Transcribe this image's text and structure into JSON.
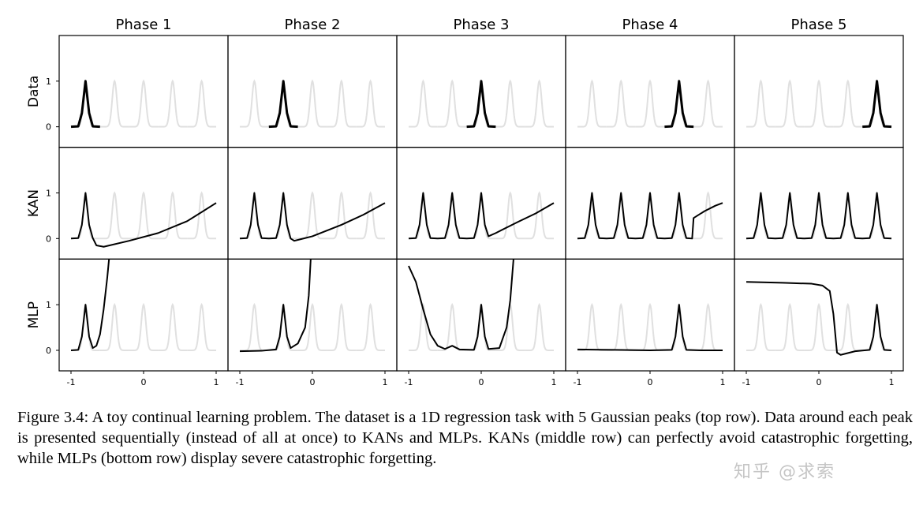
{
  "chart_data": {
    "type": "line",
    "layout": "grid-3x5",
    "columns": [
      "Phase 1",
      "Phase 2",
      "Phase 3",
      "Phase 4",
      "Phase 5"
    ],
    "rows": [
      "Data",
      "KAN",
      "MLP"
    ],
    "xlim": [
      -1,
      1
    ],
    "ylim": [
      -0.45,
      2.0
    ],
    "xticks": [
      -1,
      0,
      1
    ],
    "yticks": [
      0,
      1
    ],
    "tick_labels_x": [
      "-1",
      "0",
      "1"
    ],
    "tick_labels_y": [
      "0",
      "1"
    ],
    "gaussian_peaks_centers": [
      -0.8,
      -0.4,
      0.0,
      0.4,
      0.8
    ],
    "gaussian_peak_height": 1.0,
    "background_target_color": "#e0e0e0",
    "curve_color": "#000000",
    "series": {
      "Data": [
        [
          [
            -1,
            0
          ],
          [
            -0.9,
            0.01
          ],
          [
            -0.85,
            0.3
          ],
          [
            -0.8,
            1.0
          ],
          [
            -0.75,
            0.3
          ],
          [
            -0.7,
            0.01
          ],
          [
            -0.6,
            0
          ]
        ],
        [
          [
            -0.6,
            0
          ],
          [
            -0.5,
            0.01
          ],
          [
            -0.45,
            0.3
          ],
          [
            -0.4,
            1.0
          ],
          [
            -0.35,
            0.3
          ],
          [
            -0.3,
            0.01
          ],
          [
            -0.2,
            0
          ]
        ],
        [
          [
            -0.2,
            0
          ],
          [
            -0.1,
            0.01
          ],
          [
            -0.05,
            0.3
          ],
          [
            0,
            1.0
          ],
          [
            0.05,
            0.3
          ],
          [
            0.1,
            0.01
          ],
          [
            0.2,
            0
          ]
        ],
        [
          [
            0.2,
            0
          ],
          [
            0.3,
            0.01
          ],
          [
            0.35,
            0.3
          ],
          [
            0.4,
            1.0
          ],
          [
            0.45,
            0.3
          ],
          [
            0.5,
            0.01
          ],
          [
            0.6,
            0
          ]
        ],
        [
          [
            0.6,
            0
          ],
          [
            0.7,
            0.01
          ],
          [
            0.75,
            0.3
          ],
          [
            0.8,
            1.0
          ],
          [
            0.85,
            0.3
          ],
          [
            0.9,
            0.01
          ],
          [
            1,
            0
          ]
        ]
      ],
      "KAN": [
        [
          [
            -1,
            0
          ],
          [
            -0.9,
            0.01
          ],
          [
            -0.85,
            0.3
          ],
          [
            -0.8,
            1.0
          ],
          [
            -0.75,
            0.3
          ],
          [
            -0.7,
            0.01
          ],
          [
            -0.65,
            -0.15
          ],
          [
            -0.55,
            -0.18
          ],
          [
            -0.2,
            -0.05
          ],
          [
            0.2,
            0.12
          ],
          [
            0.6,
            0.38
          ],
          [
            1,
            0.78
          ]
        ],
        [
          [
            -1,
            0
          ],
          [
            -0.9,
            0.01
          ],
          [
            -0.85,
            0.3
          ],
          [
            -0.8,
            1.0
          ],
          [
            -0.75,
            0.3
          ],
          [
            -0.7,
            0.01
          ],
          [
            -0.6,
            0
          ],
          [
            -0.5,
            0.01
          ],
          [
            -0.45,
            0.3
          ],
          [
            -0.4,
            1.0
          ],
          [
            -0.35,
            0.3
          ],
          [
            -0.3,
            0.0
          ],
          [
            -0.25,
            -0.05
          ],
          [
            0.0,
            0.05
          ],
          [
            0.4,
            0.3
          ],
          [
            0.7,
            0.52
          ],
          [
            1,
            0.78
          ]
        ],
        [
          [
            -1,
            0
          ],
          [
            -0.9,
            0.01
          ],
          [
            -0.85,
            0.3
          ],
          [
            -0.8,
            1.0
          ],
          [
            -0.75,
            0.3
          ],
          [
            -0.7,
            0.01
          ],
          [
            -0.6,
            0
          ],
          [
            -0.5,
            0.01
          ],
          [
            -0.45,
            0.3
          ],
          [
            -0.4,
            1.0
          ],
          [
            -0.35,
            0.3
          ],
          [
            -0.3,
            0.01
          ],
          [
            -0.2,
            0
          ],
          [
            -0.1,
            0.01
          ],
          [
            -0.05,
            0.3
          ],
          [
            0,
            1.0
          ],
          [
            0.05,
            0.3
          ],
          [
            0.1,
            0.05
          ],
          [
            0.2,
            0.12
          ],
          [
            0.5,
            0.36
          ],
          [
            0.75,
            0.55
          ],
          [
            1,
            0.78
          ]
        ],
        [
          [
            -1,
            0
          ],
          [
            -0.9,
            0.01
          ],
          [
            -0.85,
            0.3
          ],
          [
            -0.8,
            1.0
          ],
          [
            -0.75,
            0.3
          ],
          [
            -0.7,
            0.01
          ],
          [
            -0.6,
            0
          ],
          [
            -0.5,
            0.01
          ],
          [
            -0.45,
            0.3
          ],
          [
            -0.4,
            1.0
          ],
          [
            -0.35,
            0.3
          ],
          [
            -0.3,
            0.01
          ],
          [
            -0.2,
            0
          ],
          [
            -0.1,
            0.01
          ],
          [
            -0.05,
            0.3
          ],
          [
            0,
            1.0
          ],
          [
            0.05,
            0.3
          ],
          [
            0.1,
            0.01
          ],
          [
            0.2,
            0
          ],
          [
            0.3,
            0.01
          ],
          [
            0.35,
            0.3
          ],
          [
            0.4,
            1.0
          ],
          [
            0.45,
            0.3
          ],
          [
            0.5,
            0.01
          ],
          [
            0.58,
            0.0
          ],
          [
            0.6,
            0.45
          ],
          [
            0.75,
            0.6
          ],
          [
            0.9,
            0.72
          ],
          [
            1,
            0.78
          ]
        ],
        [
          [
            -1,
            0
          ],
          [
            -0.9,
            0.01
          ],
          [
            -0.85,
            0.3
          ],
          [
            -0.8,
            1.0
          ],
          [
            -0.75,
            0.3
          ],
          [
            -0.7,
            0.01
          ],
          [
            -0.6,
            0
          ],
          [
            -0.5,
            0.01
          ],
          [
            -0.45,
            0.3
          ],
          [
            -0.4,
            1.0
          ],
          [
            -0.35,
            0.3
          ],
          [
            -0.3,
            0.01
          ],
          [
            -0.2,
            0
          ],
          [
            -0.1,
            0.01
          ],
          [
            -0.05,
            0.3
          ],
          [
            0,
            1.0
          ],
          [
            0.05,
            0.3
          ],
          [
            0.1,
            0.01
          ],
          [
            0.2,
            0
          ],
          [
            0.3,
            0.01
          ],
          [
            0.35,
            0.3
          ],
          [
            0.4,
            1.0
          ],
          [
            0.45,
            0.3
          ],
          [
            0.5,
            0.01
          ],
          [
            0.6,
            0
          ],
          [
            0.7,
            0.01
          ],
          [
            0.75,
            0.3
          ],
          [
            0.8,
            1.0
          ],
          [
            0.85,
            0.3
          ],
          [
            0.9,
            0.01
          ],
          [
            1,
            0
          ]
        ]
      ],
      "MLP": [
        [
          [
            -1,
            0
          ],
          [
            -0.9,
            0.01
          ],
          [
            -0.85,
            0.3
          ],
          [
            -0.8,
            1.0
          ],
          [
            -0.75,
            0.3
          ],
          [
            -0.7,
            0.05
          ],
          [
            -0.65,
            0.1
          ],
          [
            -0.6,
            0.35
          ],
          [
            -0.55,
            0.9
          ],
          [
            -0.5,
            1.6
          ],
          [
            -0.47,
            2.1
          ]
        ],
        [
          [
            -1,
            -0.02
          ],
          [
            -0.7,
            -0.01
          ],
          [
            -0.5,
            0.02
          ],
          [
            -0.45,
            0.3
          ],
          [
            -0.4,
            1.0
          ],
          [
            -0.35,
            0.3
          ],
          [
            -0.3,
            0.05
          ],
          [
            -0.2,
            0.15
          ],
          [
            -0.1,
            0.5
          ],
          [
            -0.05,
            1.2
          ],
          [
            -0.02,
            2.1
          ]
        ],
        [
          [
            -1,
            1.85
          ],
          [
            -0.9,
            1.5
          ],
          [
            -0.8,
            0.9
          ],
          [
            -0.7,
            0.35
          ],
          [
            -0.6,
            0.1
          ],
          [
            -0.5,
            0.03
          ],
          [
            -0.4,
            0.1
          ],
          [
            -0.3,
            0.02
          ],
          [
            -0.1,
            0.01
          ],
          [
            -0.05,
            0.3
          ],
          [
            0,
            1.0
          ],
          [
            0.05,
            0.3
          ],
          [
            0.1,
            0.03
          ],
          [
            0.25,
            0.05
          ],
          [
            0.35,
            0.5
          ],
          [
            0.4,
            1.1
          ],
          [
            0.45,
            2.1
          ]
        ],
        [
          [
            -1,
            0.02
          ],
          [
            -0.5,
            0.01
          ],
          [
            0,
            0.0
          ],
          [
            0.3,
            0.01
          ],
          [
            0.35,
            0.3
          ],
          [
            0.4,
            1.0
          ],
          [
            0.45,
            0.3
          ],
          [
            0.5,
            0.01
          ],
          [
            0.7,
            0.0
          ],
          [
            1,
            0.0
          ]
        ],
        [
          [
            -1,
            1.5
          ],
          [
            -0.5,
            1.48
          ],
          [
            -0.1,
            1.46
          ],
          [
            0.05,
            1.42
          ],
          [
            0.15,
            1.3
          ],
          [
            0.2,
            0.8
          ],
          [
            0.25,
            -0.05
          ],
          [
            0.3,
            -0.1
          ],
          [
            0.5,
            -0.02
          ],
          [
            0.7,
            0.01
          ],
          [
            0.75,
            0.3
          ],
          [
            0.8,
            1.0
          ],
          [
            0.85,
            0.3
          ],
          [
            0.9,
            0.01
          ],
          [
            1,
            0.0
          ]
        ]
      ]
    }
  },
  "caption": "Figure 3.4: A toy continual learning problem. The dataset is a 1D regression task with 5 Gaussian peaks (top row). Data around each peak is presented sequentially (instead of all at once) to KANs and MLPs. KANs (middle row) can perfectly avoid catastrophic forgetting, while MLPs (bottom row) display severe catastrophic forgetting.",
  "watermark": "知乎 @求索"
}
